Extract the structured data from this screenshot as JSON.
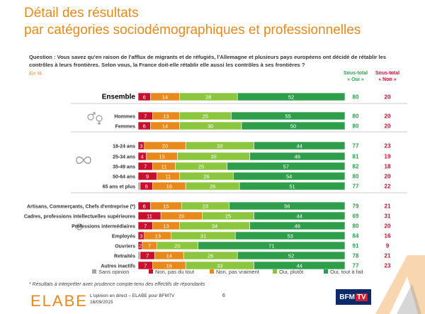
{
  "title_line1": "Détail des résultats",
  "title_line2": "par catégories sociodémographiques et professionnelles",
  "question": "Question : Vous savez qu'en raison de l'afflux de migrants et de réfugiés, l'Allemagne et plusieurs pays européens ont décidé de rétablir les contrôles à leurs frontières. Selon vous, la France doit-elle rétablir elle aussi les contrôles à ses frontières ?",
  "unit": "En %",
  "col_oui": "Sous-total « Oui »",
  "col_non": "Sous-total « Non »",
  "colors": {
    "sans_opinion": "#a6a6a6",
    "non_pas_du_tout": "#c8102e",
    "non_pas_vraiment": "#e8891c",
    "oui_plutot": "#8cc63f",
    "oui_tout_a_fait": "#2e9e4a",
    "oui_text": "#2e9e4a",
    "non_text": "#c8102e",
    "title": "#e8891c"
  },
  "chart_data": {
    "type": "bar",
    "stacked": true,
    "orientation": "horizontal",
    "xlim": [
      0,
      100
    ],
    "series": [
      {
        "name": "Sans opinion",
        "key": "sans_opinion"
      },
      {
        "name": "Non, pas du tout",
        "key": "non_pas_du_tout"
      },
      {
        "name": "Non, pas vraiment",
        "key": "non_pas_vraiment"
      },
      {
        "name": "Oui, plutôt",
        "key": "oui_plutot"
      },
      {
        "name": "Oui, tout à fait",
        "key": "oui_tout_a_fait"
      }
    ],
    "rows": [
      {
        "label": "Ensemble",
        "values": [
          0,
          6,
          14,
          28,
          52
        ],
        "oui": 80,
        "non": 20
      },
      {
        "label": "Hommes",
        "values": [
          0,
          7,
          13,
          25,
          55
        ],
        "oui": 80,
        "non": 20
      },
      {
        "label": "Femmes",
        "values": [
          0,
          6,
          14,
          30,
          50
        ],
        "oui": 80,
        "non": 20
      },
      {
        "label": "18-24 ans",
        "values": [
          0,
          3,
          20,
          33,
          44
        ],
        "oui": 77,
        "non": 23
      },
      {
        "label": "25-34 ans",
        "values": [
          0,
          4,
          15,
          35,
          46
        ],
        "oui": 81,
        "non": 19
      },
      {
        "label": "35-49 ans",
        "values": [
          0,
          7,
          11,
          25,
          57
        ],
        "oui": 82,
        "non": 18
      },
      {
        "label": "50-64 ans",
        "values": [
          0,
          9,
          11,
          26,
          54
        ],
        "oui": 80,
        "non": 20
      },
      {
        "label": "65 ans et plus",
        "values": [
          1,
          6,
          16,
          26,
          51
        ],
        "oui": 77,
        "non": 22
      },
      {
        "label": "Artisans, Commerçants, Chefs d'entreprise (*)",
        "values": [
          0,
          6,
          15,
          23,
          56
        ],
        "oui": 79,
        "non": 21
      },
      {
        "label": "Cadres, professions intellectuelles supérieures",
        "values": [
          0,
          11,
          20,
          25,
          44
        ],
        "oui": 69,
        "non": 31
      },
      {
        "label": "Professions intermédiaires",
        "values": [
          0,
          7,
          13,
          34,
          46
        ],
        "oui": 80,
        "non": 20
      },
      {
        "label": "Employés",
        "values": [
          0,
          3,
          13,
          31,
          53
        ],
        "oui": 84,
        "non": 16
      },
      {
        "label": "Ouvriers",
        "values": [
          0,
          2,
          7,
          20,
          71
        ],
        "oui": 91,
        "non": 9
      },
      {
        "label": "Retraités",
        "values": [
          1,
          7,
          14,
          26,
          52
        ],
        "oui": 78,
        "non": 21
      },
      {
        "label": "Autres inactifs",
        "values": [
          0,
          7,
          16,
          33,
          44
        ],
        "oui": 77,
        "non": 23
      }
    ]
  },
  "footnote": "* Résultats à interpréter avec prudence compte-tenu des effectifs de répondants",
  "footer_logo": "ELABE",
  "footer_line1": "L'opinion en direct – ELABE pour BFMTV",
  "footer_line2": "16/09/2015",
  "page_number": "6",
  "tv_logo_a": "BFM",
  "tv_logo_b": "TV"
}
